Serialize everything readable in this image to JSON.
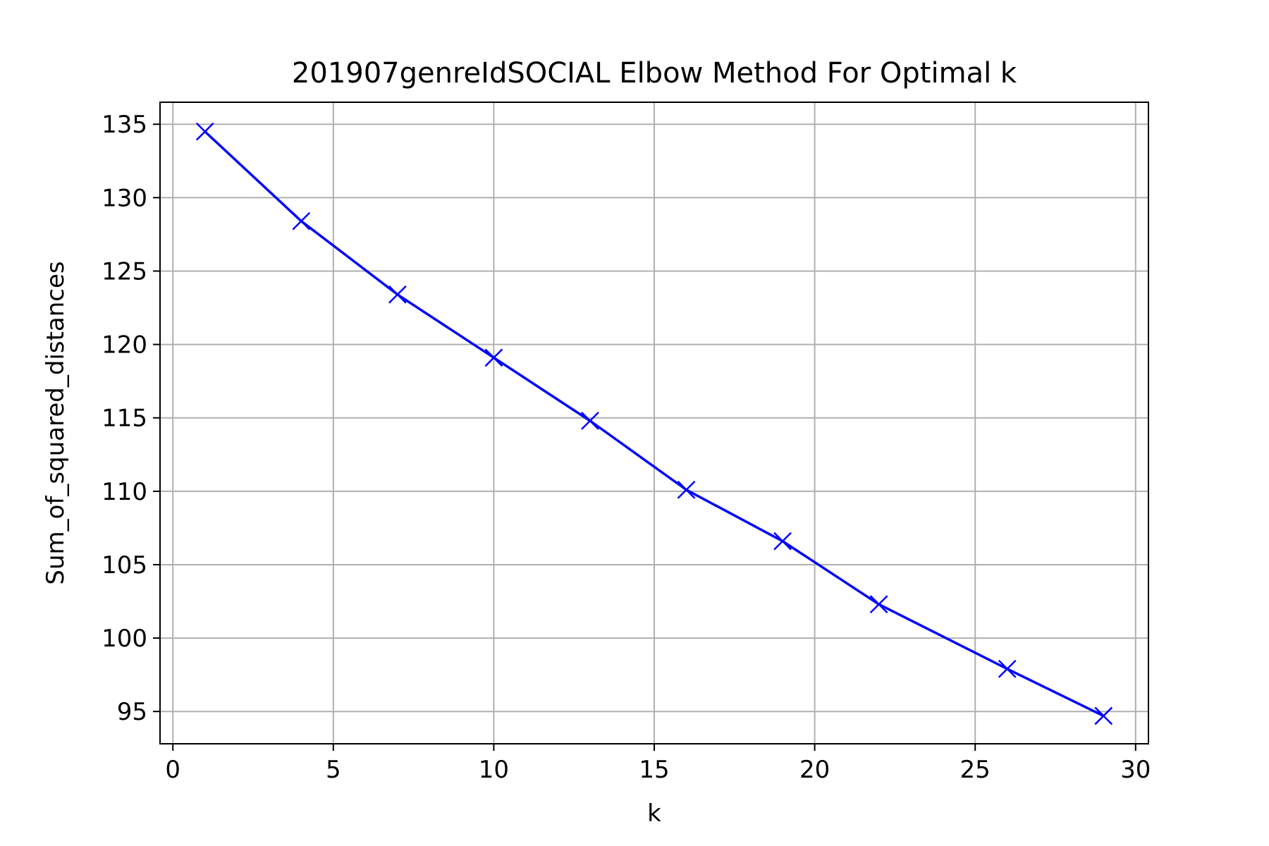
{
  "chart_data": {
    "type": "line",
    "title": "201907genreIdSOCIAL Elbow Method For Optimal k",
    "xlabel": "k",
    "ylabel": "Sum_of_squared_distances",
    "xlim": [
      -0.4,
      30.4
    ],
    "ylim": [
      92.8,
      136.5
    ],
    "xticks": [
      0,
      5,
      10,
      15,
      20,
      25,
      30
    ],
    "yticks": [
      95,
      100,
      105,
      110,
      115,
      120,
      125,
      130,
      135
    ],
    "grid": true,
    "series": [
      {
        "marker": "x",
        "x": [
          1,
          4,
          7,
          10,
          13,
          16,
          19,
          22,
          26,
          29
        ],
        "y": [
          134.5,
          128.4,
          123.4,
          119.1,
          114.8,
          110.1,
          106.6,
          102.3,
          97.9,
          94.7
        ]
      }
    ],
    "colors": {
      "series": "#0000ff",
      "grid": "#b0b0b0",
      "axes": "#000000"
    }
  }
}
